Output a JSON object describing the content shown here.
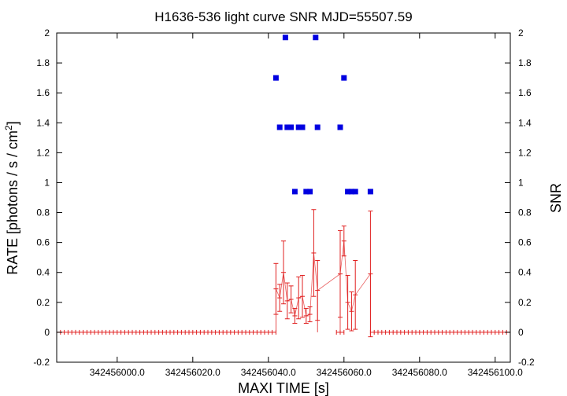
{
  "chart_data": {
    "type": "scatter",
    "title": "H1636-536 light curve  SNR MJD=55507.59",
    "xlabel": "MAXI TIME [s]",
    "ylabel_prefix": "RATE [photons / s / cm",
    "ylabel_sup": "2",
    "ylabel_suffix": "]",
    "y2label": "SNR",
    "xlim": [
      342455984.0,
      342456104.0
    ],
    "ylim": [
      -0.2,
      2.0
    ],
    "y2lim": [
      -0.2,
      2.0
    ],
    "x_ticks": [
      {
        "value": 342456000.0,
        "label": "342456000.0"
      },
      {
        "value": 342456020.0,
        "label": "342456020.0"
      },
      {
        "value": 342456040.0,
        "label": "342456040.0"
      },
      {
        "value": 342456060.0,
        "label": "342456060.0"
      },
      {
        "value": 342456080.0,
        "label": "342456080.0"
      },
      {
        "value": 342456100.0,
        "label": "342456100.0"
      }
    ],
    "y_ticks": [
      {
        "value": -0.2,
        "label": "-0.2"
      },
      {
        "value": 0.0,
        "label": "0"
      },
      {
        "value": 0.2,
        "label": "0.2"
      },
      {
        "value": 0.4,
        "label": "0.4"
      },
      {
        "value": 0.6,
        "label": "0.6"
      },
      {
        "value": 0.8,
        "label": "0.8"
      },
      {
        "value": 1.0,
        "label": "1"
      },
      {
        "value": 1.2,
        "label": "1.2"
      },
      {
        "value": 1.4,
        "label": "1.4"
      },
      {
        "value": 1.6,
        "label": "1.6"
      },
      {
        "value": 1.8,
        "label": "1.8"
      },
      {
        "value": 2.0,
        "label": "2"
      }
    ],
    "grid": false,
    "series": [
      {
        "kind": "rate_with_errors",
        "color": "#e02020",
        "zero_run": {
          "from": 342455984.0,
          "to": 342456104.0,
          "step": 1.0,
          "exclude_from": 342456042.0,
          "exclude_to": 342456058.0,
          "exclude2_from": 342456060.0,
          "exclude2_to": 342456067.0
        },
        "points": [
          {
            "x": 342456042.0,
            "y": 0.29,
            "err": 0.17
          },
          {
            "x": 342456043.0,
            "y": 0.23,
            "err": 0.09
          },
          {
            "x": 342456044.0,
            "y": 0.4,
            "err": 0.21
          },
          {
            "x": 342456045.0,
            "y": 0.21,
            "err": 0.12
          },
          {
            "x": 342456046.0,
            "y": 0.22,
            "err": 0.09
          },
          {
            "x": 342456047.0,
            "y": 0.11,
            "err": 0.05
          },
          {
            "x": 342456048.0,
            "y": 0.23,
            "err": 0.14
          },
          {
            "x": 342456049.0,
            "y": 0.24,
            "err": 0.14
          },
          {
            "x": 342456050.0,
            "y": 0.11,
            "err": 0.05
          },
          {
            "x": 342456051.0,
            "y": 0.12,
            "err": 0.05
          },
          {
            "x": 342456052.0,
            "y": 0.53,
            "err": 0.29
          },
          {
            "x": 342456053.0,
            "y": 0.28,
            "err": 0.2
          },
          {
            "x": 342456059.0,
            "y": 0.39,
            "err": 0.29
          },
          {
            "x": 342456060.0,
            "y": 0.61,
            "err": 0.1
          },
          {
            "x": 342456061.0,
            "y": 0.2,
            "err": 0.18
          },
          {
            "x": 342456062.0,
            "y": 0.14,
            "err": 0.13
          },
          {
            "x": 342456063.0,
            "y": 0.25,
            "err": 0.23
          },
          {
            "x": 342456067.0,
            "y": 0.39,
            "err": 0.42
          }
        ]
      },
      {
        "kind": "snr",
        "color": "#0000e0",
        "points": [
          {
            "x": 342456042.0,
            "y": 1.7
          },
          {
            "x": 342456043.0,
            "y": 1.37
          },
          {
            "x": 342456044.5,
            "y": 1.97
          },
          {
            "x": 342456045.0,
            "y": 1.37
          },
          {
            "x": 342456046.0,
            "y": 1.37
          },
          {
            "x": 342456047.0,
            "y": 0.94
          },
          {
            "x": 342456048.0,
            "y": 1.37
          },
          {
            "x": 342456049.0,
            "y": 1.37
          },
          {
            "x": 342456050.0,
            "y": 0.94
          },
          {
            "x": 342456051.0,
            "y": 0.94
          },
          {
            "x": 342456052.5,
            "y": 1.97
          },
          {
            "x": 342456053.0,
            "y": 1.37
          },
          {
            "x": 342456059.0,
            "y": 1.37
          },
          {
            "x": 342456060.0,
            "y": 1.7
          },
          {
            "x": 342456061.0,
            "y": 0.94
          },
          {
            "x": 342456062.0,
            "y": 0.94
          },
          {
            "x": 342456063.0,
            "y": 0.94
          },
          {
            "x": 342456067.0,
            "y": 0.94
          }
        ]
      }
    ]
  }
}
